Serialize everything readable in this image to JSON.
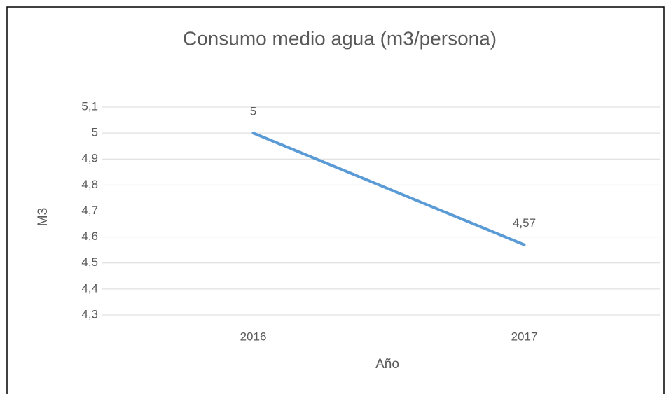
{
  "chart_data": {
    "type": "line",
    "title": "Consumo medio agua (m3/persona)",
    "x_label": "Año",
    "y_label": "M3",
    "categories": [
      "2016",
      "2017"
    ],
    "series": [
      {
        "name": "M3",
        "color": "#5b9bd5",
        "values": [
          5,
          4.57
        ],
        "value_labels": [
          "5",
          "4,57"
        ]
      }
    ],
    "ylim": [
      4.3,
      5.1
    ],
    "yticks": [
      {
        "value": 4.3,
        "label": "4,3"
      },
      {
        "value": 4.4,
        "label": "4,4"
      },
      {
        "value": 4.5,
        "label": "4,5"
      },
      {
        "value": 4.6,
        "label": "4,6"
      },
      {
        "value": 4.7,
        "label": "4,7"
      },
      {
        "value": 4.8,
        "label": "4,8"
      },
      {
        "value": 4.9,
        "label": "4,9"
      },
      5,
      {
        "value": 5.1,
        "label": "5,1"
      }
    ],
    "grid": true,
    "legend": false
  }
}
